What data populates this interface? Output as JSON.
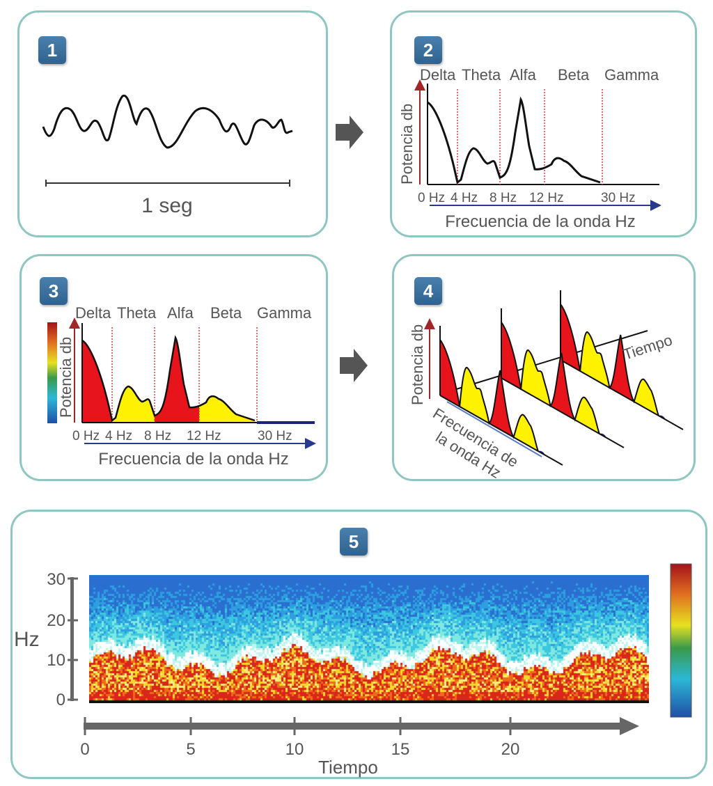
{
  "panels": [
    {
      "number": "1",
      "duration_label": "1 seg"
    },
    {
      "number": "2",
      "bands": [
        "Delta",
        "Theta",
        "Alfa",
        "Beta",
        "Gamma"
      ],
      "freq_ticks": [
        "0 Hz",
        "4 Hz",
        "8 Hz",
        "12 Hz",
        "30 Hz"
      ],
      "ylabel": "Potencia db",
      "xlabel": "Frecuencia de la onda Hz"
    },
    {
      "number": "3",
      "bands": [
        "Delta",
        "Theta",
        "Alfa",
        "Beta",
        "Gamma"
      ],
      "freq_ticks": [
        "0 Hz",
        "4 Hz",
        "8 Hz",
        "12 Hz",
        "30 Hz"
      ],
      "ylabel": "Potencia db",
      "xlabel": "Frecuencia de la onda Hz"
    },
    {
      "number": "4",
      "ylabel": "Potencia db",
      "xlabel_line1": "Frecuencia de",
      "xlabel_line2": "la onda Hz",
      "time_label": "Tiempo"
    },
    {
      "number": "5",
      "ylabel": "Hz",
      "y_ticks": [
        "30",
        "20",
        "10",
        "0"
      ],
      "x_ticks": [
        "0",
        "5",
        "10",
        "15",
        "20"
      ],
      "xlabel": "Tiempo"
    }
  ],
  "colors": {
    "border": "#8fc6c2",
    "badge": "#3a6f9e",
    "delta_alfa": "#e8141b",
    "theta_beta": "#fff200",
    "gamma": "#1a237e",
    "arrow": "#555555"
  }
}
